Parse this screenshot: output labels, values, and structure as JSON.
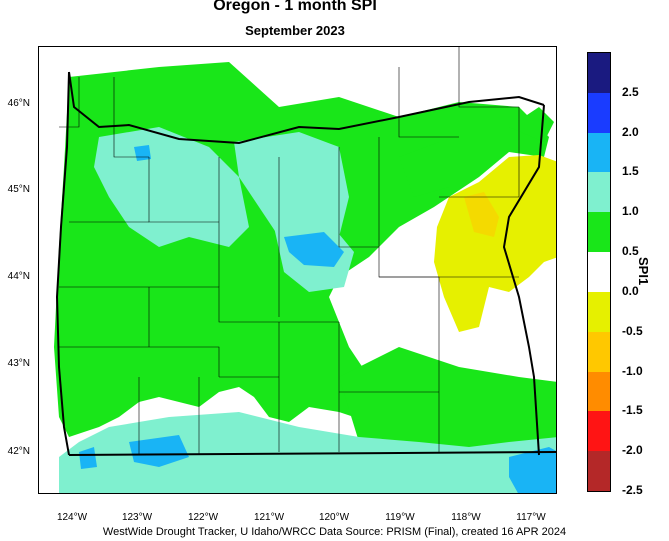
{
  "title": "Oregon - 1 month SPI",
  "subtitle": "September 2023",
  "legend": {
    "title": "SPI1",
    "ticks": [
      "2.5",
      "2.0",
      "1.5",
      "1.0",
      "0.5",
      "0.0",
      "-0.5",
      "-1.0",
      "-1.5",
      "-2.0",
      "-2.5"
    ],
    "colors": [
      "#1a1a80",
      "#1a3cff",
      "#19b4f5",
      "#7ff0cf",
      "#19e619",
      "#ffffff",
      "#e6f000",
      "#ffc800",
      "#ff8c00",
      "#ff1414",
      "#b42828"
    ]
  },
  "axes": {
    "lat_labels": [
      "46°N",
      "45°N",
      "44°N",
      "43°N",
      "42°N"
    ],
    "lon_labels": [
      "124°W",
      "123°W",
      "122°W",
      "121°W",
      "120°W",
      "119°W",
      "118°W",
      "117°W"
    ]
  },
  "credit": "WestWide Drought Tracker, U Idaho/WRCC Data Source: PRISM (Final), created 16 APR 2024"
}
